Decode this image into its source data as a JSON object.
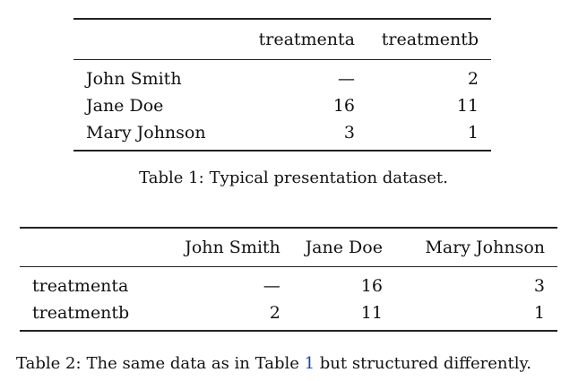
{
  "table1": {
    "headers": [
      "",
      "treatmenta",
      "treatmentb"
    ],
    "rows": [
      {
        "name": "John Smith",
        "values": [
          "—",
          "2"
        ]
      },
      {
        "name": "Jane Doe",
        "values": [
          "16",
          "11"
        ]
      },
      {
        "name": "Mary Johnson",
        "values": [
          "3",
          "1"
        ]
      }
    ],
    "caption_label": "Table 1:",
    "caption_text": "Typical presentation dataset."
  },
  "table2": {
    "headers": [
      "",
      "John Smith",
      "Jane Doe",
      "Mary Johnson"
    ],
    "rows": [
      {
        "name": "treatmenta",
        "values": [
          "—",
          "16",
          "3"
        ]
      },
      {
        "name": "treatmentb",
        "values": [
          "2",
          "11",
          "1"
        ]
      }
    ],
    "caption_label": "Table 2:",
    "caption_before": "The same data as in Table ",
    "caption_ref": "1",
    "caption_after": " but structured differently."
  }
}
